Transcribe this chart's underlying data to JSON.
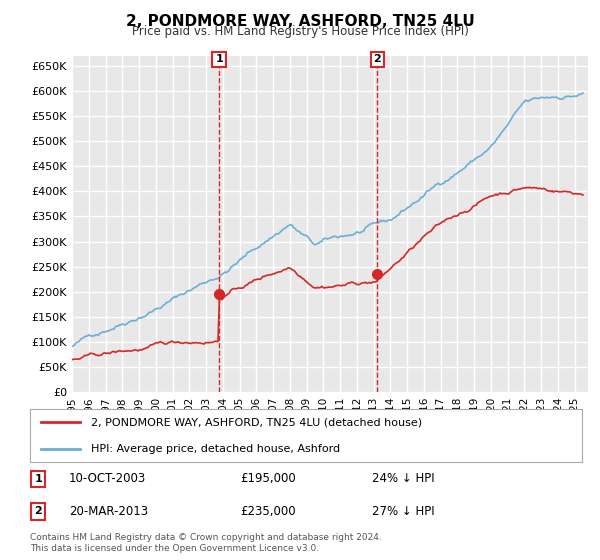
{
  "title": "2, PONDMORE WAY, ASHFORD, TN25 4LU",
  "subtitle": "Price paid vs. HM Land Registry's House Price Index (HPI)",
  "yticks": [
    0,
    50000,
    100000,
    150000,
    200000,
    250000,
    300000,
    350000,
    400000,
    450000,
    500000,
    550000,
    600000,
    650000
  ],
  "ylim": [
    0,
    670000
  ],
  "xlim_start": 1995.0,
  "xlim_end": 2025.8,
  "xticks": [
    1995,
    1996,
    1997,
    1998,
    1999,
    2000,
    2001,
    2002,
    2003,
    2004,
    2005,
    2006,
    2007,
    2008,
    2009,
    2010,
    2011,
    2012,
    2013,
    2014,
    2015,
    2016,
    2017,
    2018,
    2019,
    2020,
    2021,
    2022,
    2023,
    2024,
    2025
  ],
  "purchase1": {
    "year": 2003.78,
    "price": 195000,
    "label": "1",
    "date": "10-OCT-2003",
    "pct": "24% ↓ HPI"
  },
  "purchase2": {
    "year": 2013.22,
    "price": 235000,
    "label": "2",
    "date": "20-MAR-2013",
    "pct": "27% ↓ HPI"
  },
  "red_line_label": "2, PONDMORE WAY, ASHFORD, TN25 4LU (detached house)",
  "blue_line_label": "HPI: Average price, detached house, Ashford",
  "footer": "Contains HM Land Registry data © Crown copyright and database right 2024.\nThis data is licensed under the Open Government Licence v3.0.",
  "hpi_color": "#6baed6",
  "price_color": "#d62728",
  "background_color": "#ffffff",
  "plot_bg_color": "#e8e8e8",
  "grid_color": "#ffffff"
}
